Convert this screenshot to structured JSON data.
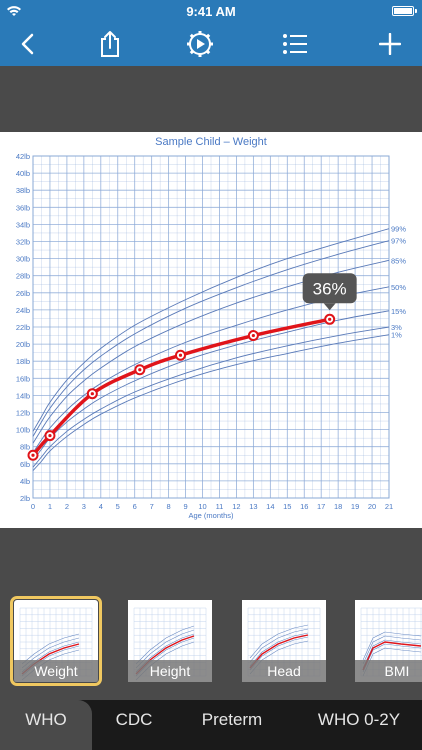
{
  "status_bar": {
    "time": "9:41 AM"
  },
  "toolbar": {
    "buttons": [
      {
        "name": "back-button",
        "icon": "chevron-left-icon"
      },
      {
        "name": "share-button",
        "icon": "share-icon"
      },
      {
        "name": "settings-button",
        "icon": "gear-play-icon"
      },
      {
        "name": "list-button",
        "icon": "list-icon"
      },
      {
        "name": "add-button",
        "icon": "plus-icon"
      }
    ]
  },
  "chart_data": {
    "type": "line",
    "title": "Sample Child – Weight",
    "xlabel": "Age (months)",
    "ylabel": "",
    "xlim": [
      0,
      21
    ],
    "ylim": [
      2,
      42
    ],
    "x_ticks": [
      0,
      1,
      2,
      3,
      4,
      5,
      6,
      7,
      8,
      9,
      10,
      11,
      12,
      13,
      14,
      15,
      16,
      17,
      18,
      19,
      20,
      21
    ],
    "y_ticks": [
      "2lb",
      "4lb",
      "6lb",
      "8lb",
      "10lb",
      "12lb",
      "14lb",
      "16lb",
      "18lb",
      "20lb",
      "22lb",
      "24lb",
      "26lb",
      "28lb",
      "30lb",
      "32lb",
      "34lb",
      "36lb",
      "38lb",
      "40lb",
      "42lb"
    ],
    "percentile_curves": [
      {
        "name": "99%",
        "x": [
          0,
          0.5,
          1,
          2,
          3,
          4,
          6,
          9,
          12,
          15,
          18,
          21
        ],
        "y": [
          9.8,
          11.5,
          13.2,
          15.8,
          17.8,
          19.5,
          22.2,
          25.2,
          27.8,
          30.0,
          31.8,
          33.5
        ]
      },
      {
        "name": "97%",
        "x": [
          0,
          0.5,
          1,
          2,
          3,
          4,
          6,
          9,
          12,
          15,
          18,
          21
        ],
        "y": [
          9.2,
          10.9,
          12.5,
          15.0,
          17.0,
          18.6,
          21.2,
          24.2,
          26.6,
          28.7,
          30.5,
          32.1
        ]
      },
      {
        "name": "85%",
        "x": [
          0,
          0.5,
          1,
          2,
          3,
          4,
          6,
          9,
          12,
          15,
          18,
          21
        ],
        "y": [
          8.4,
          10.0,
          11.5,
          13.9,
          15.7,
          17.2,
          19.7,
          22.5,
          24.8,
          26.7,
          28.4,
          29.8
        ]
      },
      {
        "name": "50%",
        "x": [
          0,
          0.5,
          1,
          2,
          3,
          4,
          6,
          9,
          12,
          15,
          18,
          21
        ],
        "y": [
          7.3,
          8.8,
          10.2,
          12.3,
          14.0,
          15.4,
          17.6,
          20.2,
          22.2,
          24.0,
          25.5,
          26.7
        ]
      },
      {
        "name": "15%",
        "x": [
          0,
          0.5,
          1,
          2,
          3,
          4,
          6,
          9,
          12,
          15,
          18,
          21
        ],
        "y": [
          6.4,
          7.7,
          9.0,
          10.9,
          12.4,
          13.7,
          15.7,
          18.1,
          19.9,
          21.4,
          22.8,
          23.9
        ]
      },
      {
        "name": "3%",
        "x": [
          0,
          0.5,
          1,
          2,
          3,
          4,
          6,
          9,
          12,
          15,
          18,
          21
        ],
        "y": [
          5.6,
          6.8,
          8.0,
          9.8,
          11.2,
          12.4,
          14.4,
          16.6,
          18.4,
          19.8,
          21.0,
          22.0
        ]
      },
      {
        "name": "1%",
        "x": [
          0,
          0.5,
          1,
          2,
          3,
          4,
          6,
          9,
          12,
          15,
          18,
          21
        ],
        "y": [
          5.2,
          6.3,
          7.5,
          9.2,
          10.6,
          11.8,
          13.7,
          15.9,
          17.6,
          18.9,
          20.1,
          21.1
        ]
      }
    ],
    "series": [
      {
        "x": [
          0,
          1,
          3.5,
          6.3,
          8.7,
          13,
          17.5
        ],
        "y": [
          7.0,
          9.3,
          14.2,
          17.0,
          18.7,
          21.0,
          22.9
        ]
      }
    ],
    "annotation": {
      "text": "36%",
      "x": 17.5
    },
    "colors": {
      "grid": "#8aa8d6",
      "curve": "#5a7ab8",
      "series": "#e0141a",
      "title": "#4a79c4"
    }
  },
  "thumbnails": [
    {
      "label": "Weight",
      "selected": true
    },
    {
      "label": "Height",
      "selected": false
    },
    {
      "label": "Head",
      "selected": false
    },
    {
      "label": "BMI",
      "selected": false
    }
  ],
  "tabs": [
    {
      "label": "WHO",
      "active": true
    },
    {
      "label": "CDC",
      "active": false
    },
    {
      "label": "Preterm",
      "active": false
    },
    {
      "label": "WHO 0-2Y",
      "active": false
    }
  ]
}
